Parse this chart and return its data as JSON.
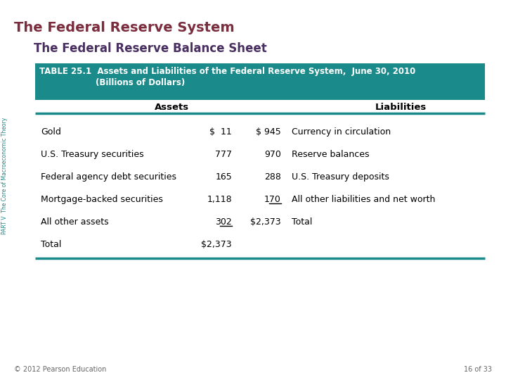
{
  "main_title": "The Federal Reserve System",
  "sub_title": "The Federal Reserve Balance Sheet",
  "table_header_line1": "TABLE 25.1  Assets and Liabilities of the Federal Reserve System,  June 30, 2010",
  "table_header_line2": "(Billions of Dollars)",
  "col_headers": [
    "Assets",
    "Liabilities"
  ],
  "rows": [
    {
      "asset_label": "Gold",
      "asset_val": "$  11",
      "liab_val": "$ 945",
      "liab_label": "Currency in circulation",
      "asset_underline": false,
      "liab_underline": false
    },
    {
      "asset_label": "U.S. Treasury securities",
      "asset_val": "777",
      "liab_val": "970",
      "liab_label": "Reserve balances",
      "asset_underline": false,
      "liab_underline": false
    },
    {
      "asset_label": "Federal agency debt securities",
      "asset_val": "165",
      "liab_val": "288",
      "liab_label": "U.S. Treasury deposits",
      "asset_underline": false,
      "liab_underline": false
    },
    {
      "asset_label": "Mortgage-backed securities",
      "asset_val": "1,118",
      "liab_val": "170",
      "liab_label": "All other liabilities and net worth",
      "asset_underline": false,
      "liab_underline": true
    },
    {
      "asset_label": "All other assets",
      "asset_val": "302",
      "liab_val": "$2,373",
      "liab_label": "Total",
      "asset_underline": true,
      "liab_underline": false
    },
    {
      "asset_label": "Total",
      "asset_val": "$2,373",
      "liab_val": "",
      "liab_label": "",
      "asset_underline": false,
      "liab_underline": false
    }
  ],
  "footer_left": "© 2012 Pearson Education",
  "footer_right": "16 of 33",
  "side_text": "PART V  The Core of Macroeconomic Theory",
  "header_bg": "#1a8a8a",
  "header_text_color": "#ffffff",
  "main_title_color": "#7b2d3e",
  "sub_title_color": "#4a3060",
  "bg_color": "#ffffff",
  "teal_color": "#1a8a8a"
}
